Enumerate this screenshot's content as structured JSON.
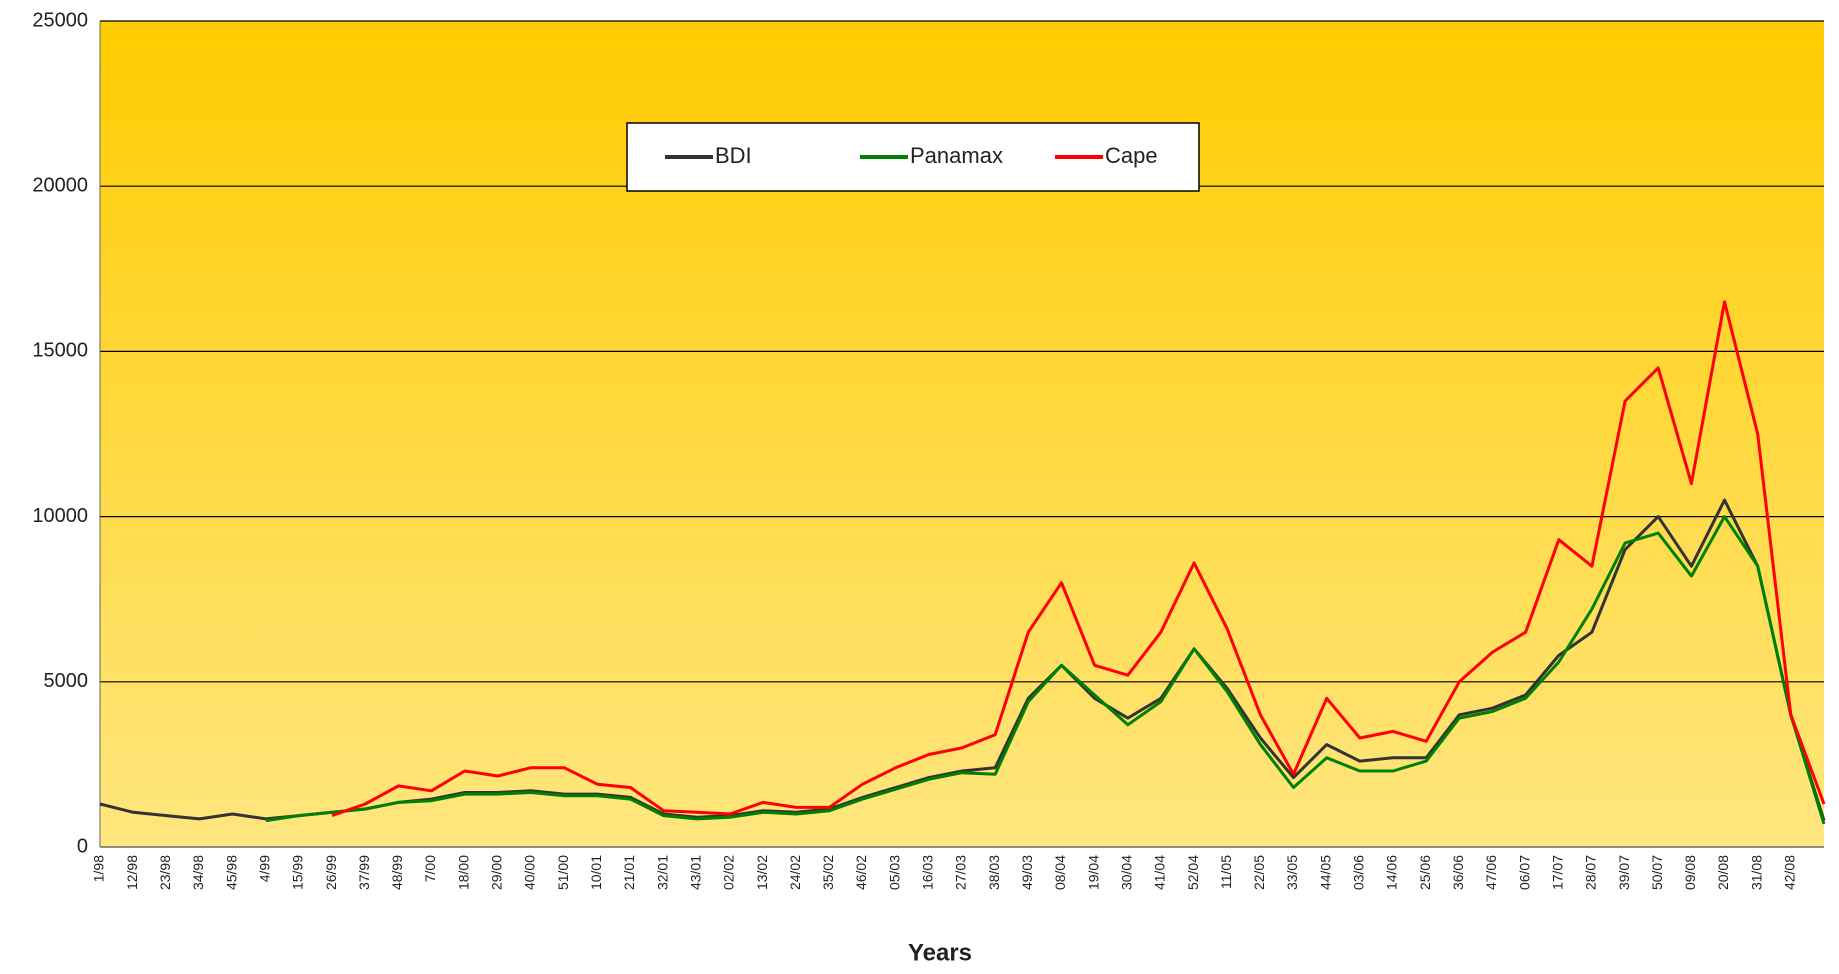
{
  "chart_data": {
    "type": "line",
    "x_label": "Years",
    "categories": [
      "1/98",
      "12/98",
      "23/98",
      "34/98",
      "45/98",
      "4/99",
      "15/99",
      "26/99",
      "37/99",
      "48/99",
      "7/00",
      "18/00",
      "29/00",
      "40/00",
      "51/00",
      "10/01",
      "21/01",
      "32/01",
      "43/01",
      "02/02",
      "13/02",
      "24/02",
      "35/02",
      "46/02",
      "05/03",
      "16/03",
      "27/03",
      "38/03",
      "49/03",
      "08/04",
      "19/04",
      "30/04",
      "41/04",
      "52/04",
      "11/05",
      "22/05",
      "33/05",
      "44/05",
      "03/06",
      "14/06",
      "25/06",
      "36/06",
      "47/06",
      "06/07",
      "17/07",
      "28/07",
      "39/07",
      "50/07",
      "09/08",
      "20/08",
      "31/08",
      "42/08",
      null
    ],
    "series": [
      {
        "name": "BDI",
        "color": "#333333",
        "values": [
          1300,
          1050,
          950,
          850,
          1000,
          850,
          950,
          1050,
          1150,
          1350,
          1450,
          1650,
          1650,
          1700,
          1600,
          1600,
          1500,
          1000,
          900,
          950,
          1100,
          1050,
          1150,
          1500,
          1800,
          2100,
          2300,
          2400,
          4500,
          5500,
          4500,
          3900,
          4500,
          6000,
          4800,
          3300,
          2100,
          3100,
          2600,
          2700,
          2700,
          4000,
          4200,
          4600,
          5800,
          6500,
          9000,
          10000,
          8500,
          10500,
          8500,
          4000,
          800
        ]
      },
      {
        "name": "Panamax",
        "color": "#008000",
        "values": [
          null,
          null,
          null,
          null,
          null,
          800,
          950,
          1050,
          1150,
          1350,
          1400,
          1600,
          1600,
          1650,
          1550,
          1550,
          1450,
          950,
          850,
          900,
          1050,
          1000,
          1100,
          1450,
          1750,
          2050,
          2250,
          2200,
          4400,
          5500,
          4600,
          3700,
          4400,
          6000,
          4700,
          3100,
          1800,
          2700,
          2300,
          2300,
          2600,
          3900,
          4100,
          4500,
          5600,
          7200,
          9200,
          9500,
          8200,
          10000,
          8500,
          4000,
          700
        ]
      },
      {
        "name": "Cape",
        "color": "#ff0000",
        "values": [
          null,
          null,
          null,
          null,
          null,
          null,
          null,
          950,
          1300,
          1850,
          1700,
          2300,
          2150,
          2400,
          2400,
          1900,
          1800,
          1100,
          1050,
          1000,
          1350,
          1200,
          1200,
          1900,
          2400,
          2800,
          3000,
          3400,
          6500,
          8000,
          5500,
          5200,
          6500,
          8600,
          6600,
          4000,
          2200,
          4500,
          3300,
          3500,
          3200,
          5000,
          5900,
          6500,
          9300,
          8500,
          13500,
          14500,
          11000,
          16500,
          12500,
          4000,
          1300
        ]
      }
    ],
    "ylim": [
      0,
      25000
    ],
    "yticks": [
      0,
      5000,
      10000,
      15000,
      20000,
      25000
    ],
    "grid": true,
    "legend": "top"
  }
}
